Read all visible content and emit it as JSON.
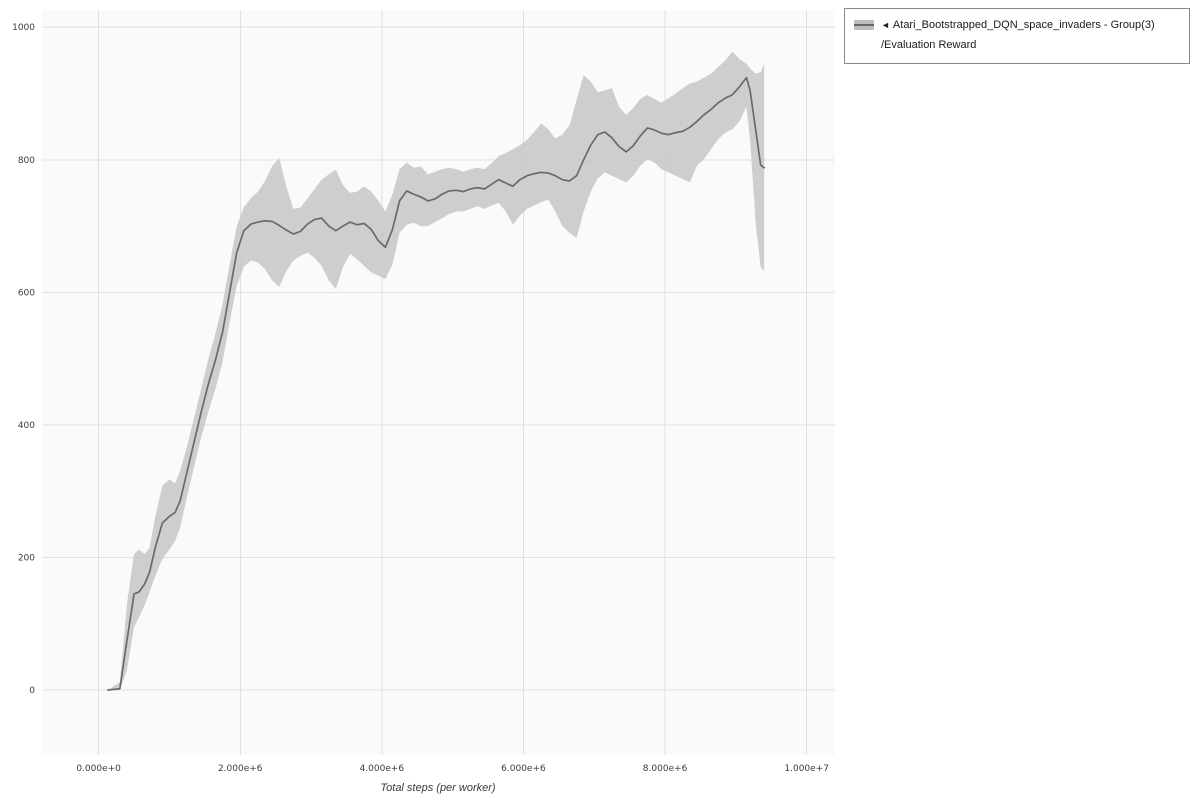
{
  "legend": {
    "arrow": "◄",
    "line1": "Atari_Bootstrapped_DQN_space_invaders - Group(3)",
    "line2": "/Evaluation Reward"
  },
  "colors": {
    "line": "#6a6a6a",
    "band": "#c5c5c5",
    "grid": "#e0e0e0",
    "plot_bg": "#fafafa",
    "tick_text": "#3c3c3c"
  },
  "chart_data": {
    "type": "line",
    "title": "",
    "xlabel": "Total steps (per worker)",
    "ylabel": "",
    "grid": true,
    "legend_position": "outside-top-right",
    "xlim": [
      -800000,
      10400000
    ],
    "ylim": [
      -98,
      1026
    ],
    "x_ticks": [
      {
        "value": 0,
        "label": "0.000e+0"
      },
      {
        "value": 2000000,
        "label": "2.000e+6"
      },
      {
        "value": 4000000,
        "label": "4.000e+6"
      },
      {
        "value": 6000000,
        "label": "6.000e+6"
      },
      {
        "value": 8000000,
        "label": "8.000e+6"
      },
      {
        "value": 10000000,
        "label": "1.000e+7"
      }
    ],
    "y_ticks": [
      {
        "value": 0,
        "label": "0"
      },
      {
        "value": 200,
        "label": "200"
      },
      {
        "value": 400,
        "label": "400"
      },
      {
        "value": 600,
        "label": "600"
      },
      {
        "value": 800,
        "label": "800"
      },
      {
        "value": 1000,
        "label": "1000"
      }
    ],
    "series": [
      {
        "name": "Atari_Bootstrapped_DQN_space_invaders - Group(3)/Evaluation Reward",
        "line_color": "#6a6a6a",
        "band_color": "#c5c5c5",
        "x": [
          130000,
          300000,
          400000,
          500000,
          570000,
          650000,
          720000,
          800000,
          900000,
          1000000,
          1080000,
          1150000,
          1250000,
          1350000,
          1450000,
          1550000,
          1650000,
          1750000,
          1850000,
          1950000,
          2050000,
          2150000,
          2250000,
          2350000,
          2450000,
          2550000,
          2650000,
          2750000,
          2850000,
          2950000,
          3050000,
          3150000,
          3250000,
          3350000,
          3450000,
          3550000,
          3650000,
          3750000,
          3850000,
          3950000,
          4050000,
          4150000,
          4250000,
          4350000,
          4450000,
          4550000,
          4650000,
          4750000,
          4850000,
          4950000,
          5050000,
          5150000,
          5250000,
          5350000,
          5450000,
          5550000,
          5650000,
          5750000,
          5850000,
          5950000,
          6050000,
          6150000,
          6250000,
          6350000,
          6450000,
          6550000,
          6650000,
          6750000,
          6850000,
          6950000,
          7050000,
          7150000,
          7250000,
          7350000,
          7450000,
          7550000,
          7650000,
          7750000,
          7850000,
          7950000,
          8050000,
          8150000,
          8250000,
          8350000,
          8450000,
          8550000,
          8650000,
          8750000,
          8850000,
          8950000,
          9050000,
          9150000,
          9200000,
          9280000,
          9350000,
          9400000
        ],
        "mean": [
          0,
          2,
          75,
          145,
          148,
          160,
          178,
          215,
          252,
          262,
          268,
          285,
          330,
          375,
          420,
          462,
          498,
          540,
          600,
          660,
          693,
          703,
          706,
          708,
          707,
          701,
          694,
          688,
          692,
          703,
          710,
          712,
          700,
          693,
          700,
          706,
          702,
          704,
          695,
          678,
          668,
          695,
          738,
          753,
          748,
          744,
          738,
          741,
          748,
          753,
          754,
          752,
          756,
          758,
          756,
          763,
          770,
          765,
          760,
          770,
          776,
          779,
          781,
          780,
          776,
          770,
          768,
          776,
          800,
          822,
          838,
          842,
          833,
          820,
          812,
          821,
          836,
          848,
          845,
          840,
          838,
          841,
          843,
          849,
          858,
          868,
          876,
          886,
          893,
          898,
          910,
          924,
          905,
          845,
          792,
          788
        ],
        "lo": [
          0,
          0,
          30,
          95,
          110,
          128,
          148,
          172,
          198,
          212,
          225,
          245,
          292,
          338,
          382,
          420,
          455,
          495,
          555,
          610,
          638,
          648,
          645,
          635,
          618,
          608,
          632,
          648,
          655,
          660,
          652,
          640,
          618,
          605,
          638,
          658,
          650,
          640,
          630,
          625,
          620,
          642,
          690,
          702,
          705,
          700,
          700,
          706,
          712,
          718,
          722,
          722,
          726,
          730,
          726,
          731,
          735,
          722,
          702,
          716,
          726,
          731,
          736,
          740,
          722,
          700,
          690,
          682,
          722,
          752,
          772,
          781,
          776,
          771,
          766,
          776,
          791,
          801,
          796,
          786,
          781,
          776,
          771,
          766,
          791,
          801,
          816,
          831,
          841,
          846,
          858,
          880,
          830,
          705,
          638,
          632
        ],
        "hi": [
          0,
          12,
          130,
          205,
          212,
          205,
          215,
          262,
          308,
          318,
          312,
          330,
          368,
          412,
          455,
          500,
          538,
          582,
          642,
          700,
          728,
          742,
          752,
          768,
          790,
          803,
          760,
          726,
          728,
          742,
          756,
          770,
          778,
          785,
          762,
          750,
          752,
          760,
          752,
          738,
          722,
          748,
          786,
          796,
          788,
          790,
          778,
          782,
          786,
          788,
          786,
          782,
          786,
          788,
          786,
          795,
          806,
          810,
          816,
          822,
          830,
          842,
          855,
          846,
          832,
          838,
          852,
          890,
          928,
          918,
          902,
          905,
          908,
          880,
          868,
          878,
          892,
          898,
          892,
          886,
          893,
          900,
          908,
          915,
          918,
          924,
          930,
          940,
          950,
          963,
          952,
          945,
          938,
          930,
          932,
          945
        ]
      }
    ]
  }
}
